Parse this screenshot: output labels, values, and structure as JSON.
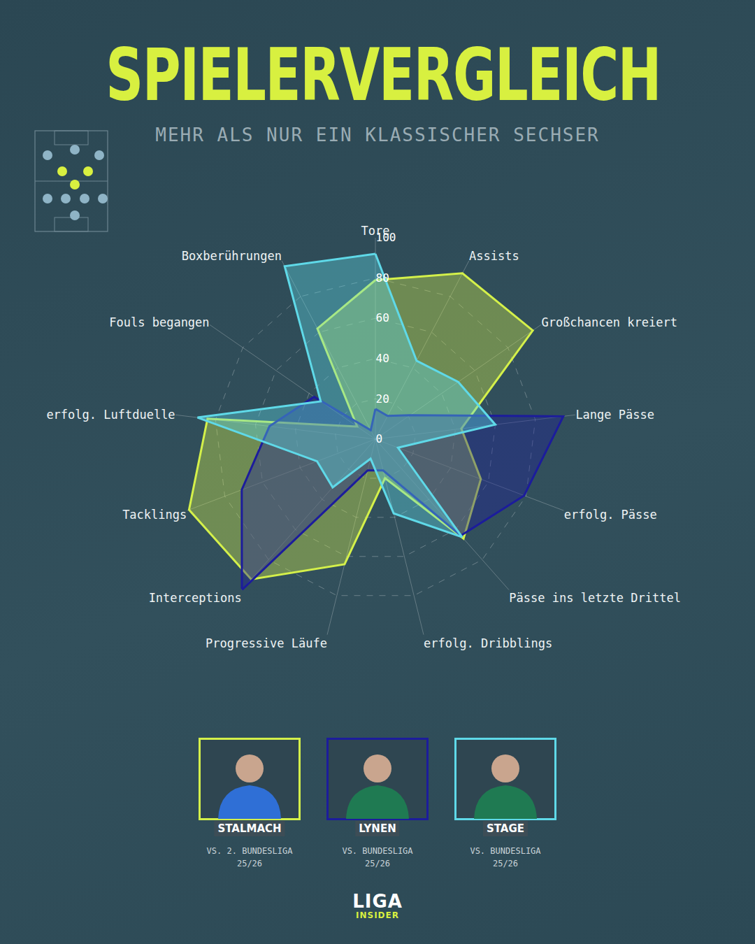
{
  "chart_data": {
    "type": "radar",
    "title": "SPIELERVERGLEICH",
    "subtitle": "MEHR ALS NUR EIN KLASSISCHER SECHSER",
    "categories": [
      "Tore",
      "Assists",
      "Großchancen kreiert",
      "Lange Pässe",
      "erfolg. Pässe",
      "Pässe ins letzte Drittel",
      "erfolg. Dribblings",
      "Progressive Läufe",
      "Interceptions",
      "Tacklings",
      "erfolg. Luftduelle",
      "Fouls begangen",
      "Boxberührungen"
    ],
    "series": [
      {
        "name": "STALMACH",
        "color": "#d4f04a",
        "caption": [
          "VS. 2. BUNDESLIGA",
          "25/26"
        ],
        "values": [
          79,
          93,
          95,
          43,
          56,
          66,
          20,
          64,
          93,
          99,
          84,
          11,
          62
        ]
      },
      {
        "name": "LYNEN",
        "color": "#1c1c9c",
        "caption": [
          "VS. BUNDESLIGA",
          "25/26"
        ],
        "values": [
          15,
          13,
          21,
          94,
          79,
          64,
          16,
          16,
          100,
          71,
          53,
          37,
          5
        ]
      },
      {
        "name": "STAGE",
        "color": "#5fd9e8",
        "caption": [
          "VS. BUNDESLIGA",
          "25/26"
        ],
        "values": [
          92,
          44,
          50,
          60,
          12,
          65,
          38,
          10,
          32,
          31,
          89,
          33,
          97
        ]
      }
    ],
    "rlim": [
      0,
      100
    ],
    "rticks": [
      0,
      20,
      40,
      60,
      80,
      100
    ],
    "grid": true
  },
  "logo": [
    "LIGA",
    "INSIDER"
  ]
}
